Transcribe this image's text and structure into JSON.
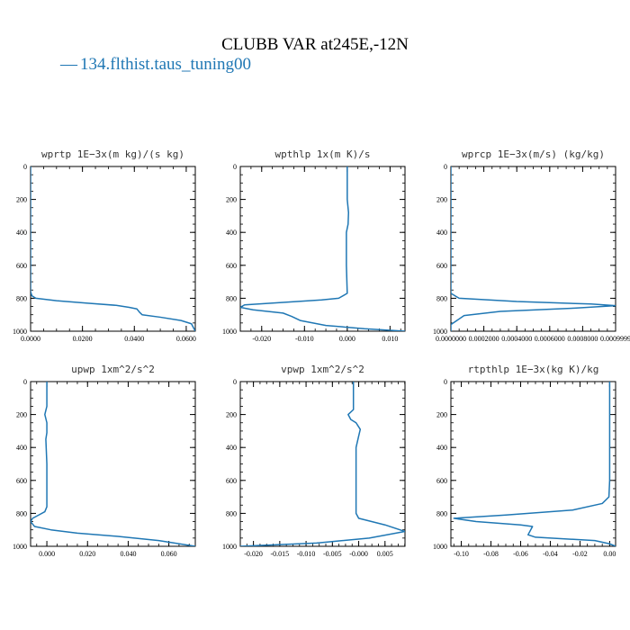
{
  "figure": {
    "title": "CLUBB VAR at245E,-12N",
    "legend_label": "134.flthist.taus_tuning00",
    "legend_symbol": "—",
    "series_color": "#1f77b4"
  },
  "chart_data": [
    {
      "type": "line",
      "title": "wprtp  1E−3x(m kg)/(s kg)",
      "xlim": [
        0,
        0.0635
      ],
      "ylim": [
        1000,
        0
      ],
      "xticks": [
        0,
        0.02,
        0.04,
        0.06
      ],
      "xtick_labels": [
        "0.0000",
        "0.0200",
        "0.0400",
        "0.0600"
      ],
      "yticks": [
        0,
        200,
        400,
        600,
        800,
        1000
      ],
      "ytick_labels": [
        "0",
        "200",
        "400",
        "600",
        "800",
        "1000"
      ],
      "series": [
        {
          "x": [
            0,
            0,
            0,
            0,
            0.0005,
            0.002,
            0.01,
            0.022,
            0.033,
            0.038,
            0.041,
            0.042,
            0.043,
            0.05,
            0.058,
            0.062,
            0.0635
          ],
          "y": [
            0,
            300,
            600,
            760,
            785,
            800,
            815,
            830,
            843,
            855,
            865,
            885,
            900,
            915,
            935,
            955,
            1000
          ]
        }
      ]
    },
    {
      "type": "line",
      "title": "wpthlp  1x(m K)/s",
      "xlim": [
        -0.025,
        0.0135
      ],
      "ylim": [
        1000,
        0
      ],
      "xticks": [
        -0.02,
        -0.01,
        0,
        0.01
      ],
      "xtick_labels": [
        "-0.020",
        "-0.010",
        "0.000",
        "0.010"
      ],
      "yticks": [
        0,
        200,
        400,
        600,
        800,
        1000
      ],
      "ytick_labels": [
        "0",
        "200",
        "400",
        "600",
        "800",
        "1000"
      ],
      "series": [
        {
          "x": [
            0,
            0,
            0.0003,
            0.0002,
            -0.0002,
            -0.0002,
            0,
            -0.002,
            -0.006,
            -0.015,
            -0.024,
            -0.025,
            -0.022,
            -0.015,
            -0.013,
            -0.011,
            -0.005,
            0.004,
            0.0135
          ],
          "y": [
            0,
            200,
            280,
            350,
            400,
            600,
            770,
            800,
            810,
            825,
            840,
            855,
            870,
            890,
            910,
            935,
            965,
            985,
            1000
          ]
        }
      ]
    },
    {
      "type": "line",
      "title": "wprcp  1E−3x(m/s) (kg/kg)",
      "xlim": [
        0,
        0.001
      ],
      "ylim": [
        1000,
        0
      ],
      "xticks": [
        0,
        0.0002,
        0.0004,
        0.0006,
        0.0008,
        0.001
      ],
      "xtick_labels": [
        "0.0000000",
        "0.0002000",
        "0.0004000",
        "0.0006000",
        "0.0008000",
        "0.0009999"
      ],
      "yticks": [
        0,
        200,
        400,
        600,
        800,
        1000
      ],
      "ytick_labels": [
        "0",
        "200",
        "400",
        "600",
        "800",
        "1000"
      ],
      "series": [
        {
          "x": [
            0,
            0,
            0,
            5e-05,
            0.0004,
            0.00085,
            0.001,
            0.00075,
            0.0003,
            8e-05,
            0,
            0
          ],
          "y": [
            0,
            500,
            770,
            800,
            820,
            835,
            845,
            860,
            880,
            905,
            960,
            1000
          ]
        }
      ]
    },
    {
      "type": "line",
      "title": "upwp  1xm^2/s^2",
      "xlim": [
        -0.008,
        0.073
      ],
      "ylim": [
        1000,
        0
      ],
      "xticks": [
        0,
        0.02,
        0.04,
        0.06
      ],
      "xtick_labels": [
        "0.000",
        "0.020",
        "0.040",
        "0.060"
      ],
      "yticks": [
        0,
        200,
        400,
        600,
        800,
        1000
      ],
      "ytick_labels": [
        "0",
        "200",
        "400",
        "600",
        "800",
        "1000"
      ],
      "series": [
        {
          "x": [
            0,
            0,
            -0.001,
            0,
            0,
            -0.0005,
            0,
            0,
            -0.001,
            -0.004,
            -0.007,
            -0.008,
            -0.006,
            0.002,
            0.015,
            0.035,
            0.055,
            0.073
          ],
          "y": [
            0,
            150,
            200,
            250,
            310,
            350,
            500,
            760,
            790,
            810,
            830,
            850,
            880,
            900,
            920,
            940,
            965,
            1000
          ]
        }
      ]
    },
    {
      "type": "line",
      "title": "vpwp  1xm^2/s^2",
      "xlim": [
        -0.0225,
        0.0088
      ],
      "ylim": [
        1000,
        0
      ],
      "xticks": [
        -0.02,
        -0.015,
        -0.01,
        -0.005,
        0,
        0.005
      ],
      "xtick_labels": [
        "-0.020",
        "-0.015",
        "-0.010",
        "-0.005",
        "-0.000",
        "0.005"
      ],
      "yticks": [
        0,
        200,
        400,
        600,
        800,
        1000
      ],
      "ytick_labels": [
        "0",
        "200",
        "400",
        "600",
        "800",
        "1000"
      ],
      "series": [
        {
          "x": [
            -0.001,
            -0.001,
            -0.002,
            -0.0015,
            -0.0005,
            0.0003,
            0,
            -0.0005,
            -0.0005,
            0,
            0.005,
            0.0088,
            0.002,
            -0.008,
            -0.0225
          ],
          "y": [
            0,
            170,
            200,
            230,
            250,
            290,
            330,
            400,
            800,
            830,
            870,
            910,
            950,
            980,
            1000
          ]
        }
      ]
    },
    {
      "type": "line",
      "title": "rtpthlp  1E−3x(kg K)/kg",
      "xlim": [
        -0.107,
        0.004
      ],
      "ylim": [
        1000,
        0
      ],
      "xticks": [
        -0.1,
        -0.08,
        -0.06,
        -0.04,
        -0.02,
        0
      ],
      "xtick_labels": [
        "-0.10",
        "-0.08",
        "-0.06",
        "-0.04",
        "-0.02",
        "0.00"
      ],
      "yticks": [
        0,
        200,
        400,
        600,
        800,
        1000
      ],
      "ytick_labels": [
        "0",
        "200",
        "400",
        "600",
        "800",
        "1000"
      ],
      "series": [
        {
          "x": [
            0,
            0,
            -0.0005,
            -0.005,
            -0.025,
            -0.07,
            -0.105,
            -0.09,
            -0.06,
            -0.052,
            -0.055,
            -0.05,
            -0.01,
            0,
            0.004
          ],
          "y": [
            0,
            600,
            700,
            740,
            780,
            810,
            830,
            850,
            870,
            880,
            930,
            945,
            965,
            985,
            1000
          ]
        }
      ]
    }
  ]
}
